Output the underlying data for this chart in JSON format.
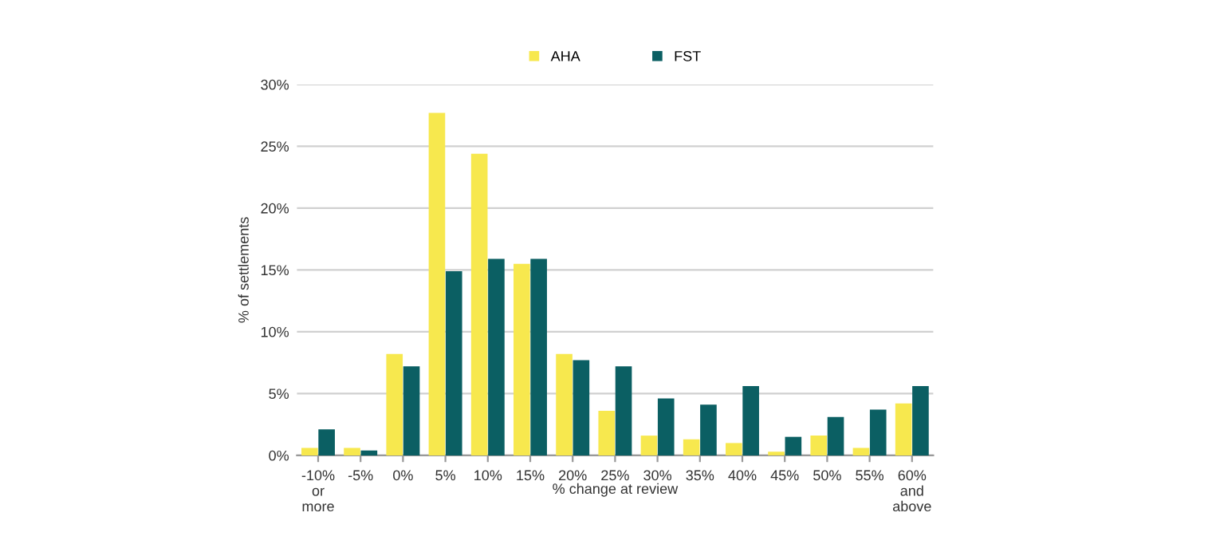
{
  "chart_data": {
    "type": "bar",
    "xlabel": "% change at review",
    "ylabel": "% of settlements",
    "categories": [
      "-10%\nor\nmore",
      "-5%",
      "0%",
      "5%",
      "10%",
      "15%",
      "20%",
      "25%",
      "30%",
      "35%",
      "40%",
      "45%",
      "50%",
      "55%",
      "60%\nand\nabove"
    ],
    "series": [
      {
        "name": "AHA",
        "color": "#f7e84e",
        "values": [
          0.6,
          0.6,
          8.2,
          27.7,
          24.4,
          15.5,
          8.2,
          3.6,
          1.6,
          1.3,
          1.0,
          0.3,
          1.6,
          0.6,
          4.2
        ]
      },
      {
        "name": "FST",
        "color": "#0b5f63",
        "values": [
          2.1,
          0.4,
          7.2,
          14.9,
          15.9,
          15.9,
          7.7,
          7.2,
          4.6,
          4.1,
          5.6,
          1.5,
          3.1,
          3.7,
          5.6
        ]
      }
    ],
    "ylim": [
      0,
      30
    ],
    "yticks": [
      {
        "value": 0,
        "label": "0%"
      },
      {
        "value": 5,
        "label": "5%"
      },
      {
        "value": 10,
        "label": "10%"
      },
      {
        "value": 15,
        "label": "15%"
      },
      {
        "value": 20,
        "label": "20%"
      },
      {
        "value": 25,
        "label": "25%"
      },
      {
        "value": 30,
        "label": "30%"
      }
    ],
    "grid": "y",
    "legend": "top"
  }
}
